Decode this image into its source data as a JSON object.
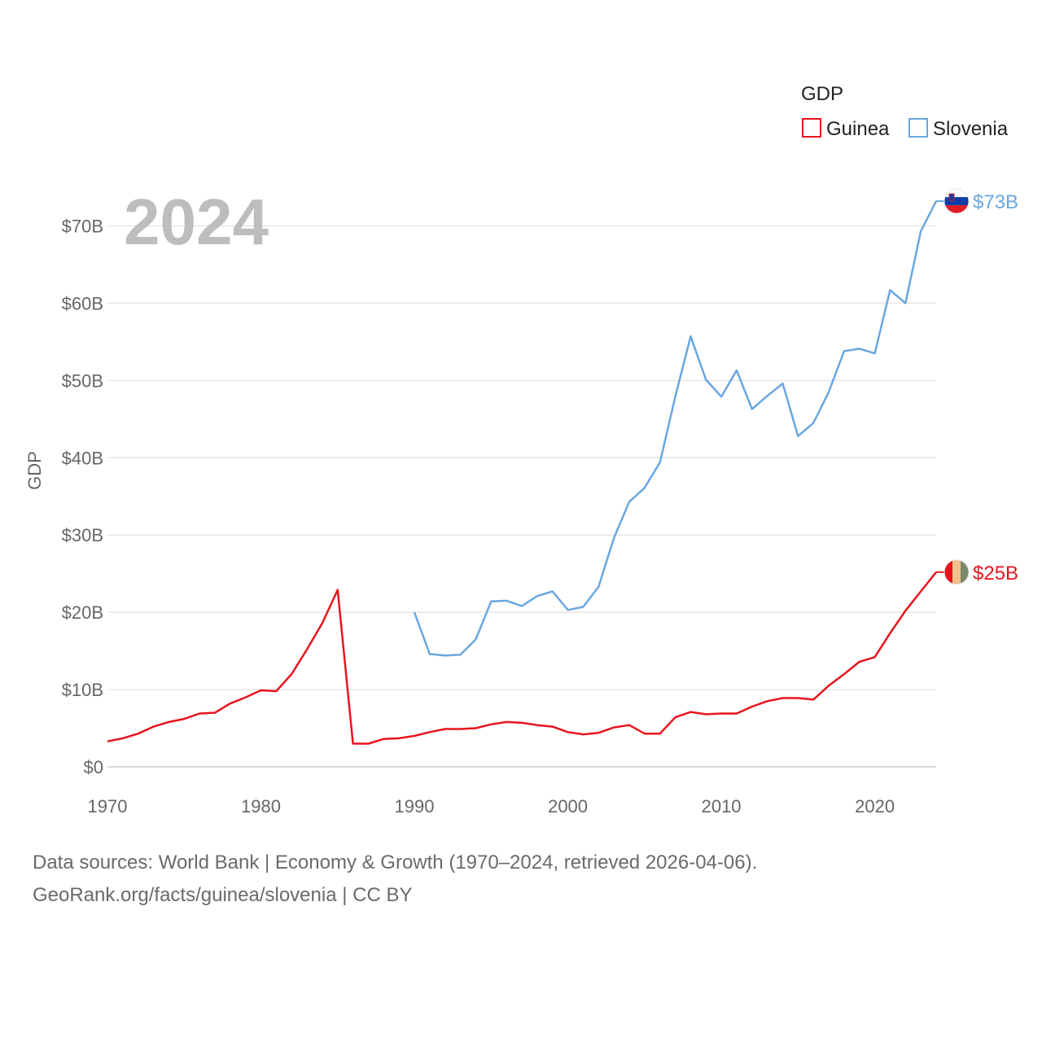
{
  "legend": {
    "title": "GDP"
  },
  "watermark_year": "2024",
  "footer": {
    "line1": "Data sources: World Bank | Economy & Growth (1970–2024, retrieved 2026-04-06).",
    "line2": "GeoRank.org/facts/guinea/slovenia | CC BY"
  },
  "chart_data": {
    "type": "line",
    "title": "GDP",
    "xlabel": "",
    "ylabel": "GDP",
    "xlim": [
      1970,
      2024
    ],
    "ylim": [
      0,
      73
    ],
    "x_ticks": [
      1970,
      1980,
      1990,
      2000,
      2010,
      2020
    ],
    "y_ticks": [
      0,
      10,
      20,
      30,
      40,
      50,
      60,
      70
    ],
    "y_tick_labels": [
      "$0",
      "$10B",
      "$20B",
      "$30B",
      "$40B",
      "$50B",
      "$60B",
      "$70B"
    ],
    "legend_position": "top-right",
    "grid": true,
    "series": [
      {
        "name": "Guinea",
        "color": "#e8141c",
        "end_label": "$25B",
        "flag_icon": "guinea-flag-icon",
        "x": [
          1970,
          1971,
          1972,
          1973,
          1974,
          1975,
          1976,
          1977,
          1978,
          1979,
          1980,
          1981,
          1982,
          1983,
          1984,
          1985,
          1986,
          1987,
          1988,
          1989,
          1990,
          1991,
          1992,
          1993,
          1994,
          1995,
          1996,
          1997,
          1998,
          1999,
          2000,
          2001,
          2002,
          2003,
          2004,
          2005,
          2006,
          2007,
          2008,
          2009,
          2010,
          2011,
          2012,
          2013,
          2014,
          2015,
          2016,
          2017,
          2018,
          2019,
          2020,
          2021,
          2022,
          2023,
          2024
        ],
        "values": [
          3.3,
          3.7,
          4.3,
          5.2,
          5.8,
          6.2,
          6.9,
          7.0,
          8.2,
          9.0,
          9.9,
          9.8,
          12.0,
          15.2,
          18.6,
          22.9,
          3.0,
          3.0,
          3.6,
          3.7,
          4.0,
          4.5,
          4.9,
          4.9,
          5.0,
          5.5,
          5.8,
          5.7,
          5.4,
          5.2,
          4.5,
          4.2,
          4.4,
          5.1,
          5.4,
          4.3,
          4.3,
          6.4,
          7.1,
          6.8,
          6.9,
          6.9,
          7.8,
          8.5,
          8.9,
          8.9,
          8.7,
          10.5,
          12.0,
          13.6,
          14.2,
          17.3,
          20.2,
          22.7,
          25.2
        ]
      },
      {
        "name": "Slovenia",
        "color": "#6aa7e0",
        "end_label": "$73B",
        "flag_icon": "slovenia-flag-icon",
        "x": [
          1990,
          1991,
          1992,
          1993,
          1994,
          1995,
          1996,
          1997,
          1998,
          1999,
          2000,
          2001,
          2002,
          2003,
          2004,
          2005,
          2006,
          2007,
          2008,
          2009,
          2010,
          2011,
          2012,
          2013,
          2014,
          2015,
          2016,
          2017,
          2018,
          2019,
          2020,
          2021,
          2022,
          2023,
          2024
        ],
        "values": [
          20.0,
          14.6,
          14.4,
          14.5,
          16.5,
          21.4,
          21.5,
          20.8,
          22.1,
          22.7,
          20.3,
          20.7,
          23.3,
          29.6,
          34.3,
          36.1,
          39.4,
          47.9,
          55.7,
          50.1,
          47.9,
          51.3,
          46.3,
          48.0,
          49.6,
          42.8,
          44.5,
          48.5,
          53.8,
          54.1,
          53.5,
          61.7,
          60.0,
          69.3,
          73.2
        ]
      }
    ]
  }
}
